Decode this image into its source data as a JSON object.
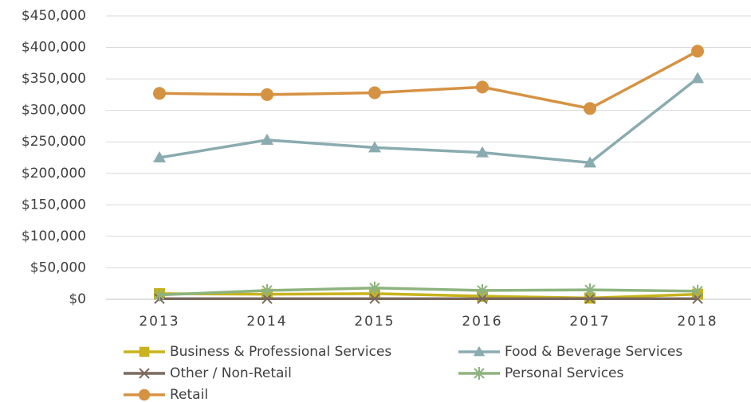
{
  "chart_data": {
    "type": "line",
    "categories": [
      "2013",
      "2014",
      "2015",
      "2016",
      "2017",
      "2018"
    ],
    "series": [
      {
        "name": "Business & Professional Services",
        "color": "#c8b31c",
        "marker": "square",
        "values": [
          9000,
          8000,
          9000,
          5000,
          2000,
          8000
        ]
      },
      {
        "name": "Food & Beverage Services",
        "color": "#8aabb0",
        "marker": "triangle",
        "values": [
          225000,
          253000,
          241000,
          233000,
          217000,
          351000
        ]
      },
      {
        "name": "Other / Non-Retail",
        "color": "#7b6a5f",
        "marker": "x",
        "values": [
          1000,
          1000,
          1000,
          1000,
          1000,
          1000
        ]
      },
      {
        "name": "Personal Services",
        "color": "#8db37e",
        "marker": "star",
        "values": [
          7000,
          14000,
          18000,
          14000,
          15000,
          13000
        ]
      },
      {
        "name": "Retail",
        "color": "#d69243",
        "marker": "circle",
        "values": [
          327000,
          325000,
          328000,
          337000,
          303000,
          394000
        ]
      }
    ],
    "ylim": [
      0,
      450000
    ],
    "yticks": [
      {
        "value": 0,
        "label": "$0"
      },
      {
        "value": 50000,
        "label": "$50,000"
      },
      {
        "value": 100000,
        "label": "$100,000"
      },
      {
        "value": 150000,
        "label": "$150,000"
      },
      {
        "value": 200000,
        "label": "$200,000"
      },
      {
        "value": 250000,
        "label": "$250,000"
      },
      {
        "value": 300000,
        "label": "$300,000"
      },
      {
        "value": 350000,
        "label": "$350,000"
      },
      {
        "value": 400000,
        "label": "$400,000"
      },
      {
        "value": 450000,
        "label": "$450,000"
      }
    ],
    "grid": true,
    "legend": "bottom"
  }
}
